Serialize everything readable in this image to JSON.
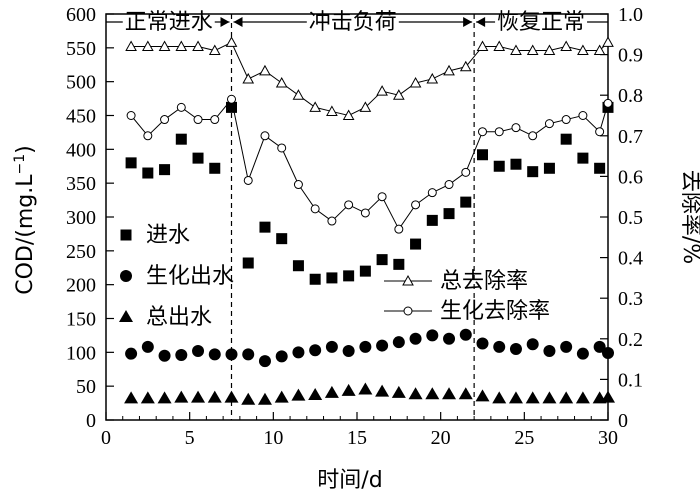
{
  "chart_data": {
    "type": "scatter",
    "xlabel": "时间/d",
    "ylabel_left": "COD/(mg.L",
    "ylabel_left_sup": "−1",
    "ylabel_left_close": ")",
    "ylabel_right": "去除率/%",
    "xlim": [
      0,
      30
    ],
    "ylim_left": [
      0,
      600
    ],
    "ylim_right": [
      0,
      1.0
    ],
    "x_ticks": [
      0,
      5,
      10,
      15,
      20,
      25,
      30
    ],
    "y_left_ticks": [
      0,
      50,
      100,
      150,
      200,
      250,
      300,
      350,
      400,
      450,
      500,
      550,
      600
    ],
    "y_right_ticks": [
      "0",
      "0.1",
      "0.2",
      "0.3",
      "0.4",
      "0.5",
      "0.6",
      "0.7",
      "0.8",
      "0.9",
      "1.0"
    ],
    "phases": [
      {
        "label": "正常进水",
        "from": 0,
        "to": 7.5
      },
      {
        "label": "冲击负荷",
        "from": 7.5,
        "to": 22
      },
      {
        "label": "恢复正常",
        "from": 22,
        "to": 30
      }
    ],
    "x": [
      1.5,
      2.5,
      3.5,
      4.5,
      5.5,
      6.5,
      7.5,
      8.5,
      9.5,
      10.5,
      11.5,
      12.5,
      13.5,
      14.5,
      15.5,
      16.5,
      17.5,
      18.5,
      19.5,
      20.5,
      21.5,
      22.5,
      23.5,
      24.5,
      25.5,
      26.5,
      27.5,
      28.5,
      29.5,
      30.5
    ],
    "series": [
      {
        "name": "进水",
        "axis": "left",
        "marker": "square",
        "values": [
          380,
          365,
          370,
          415,
          387,
          372,
          462,
          232,
          285,
          268,
          228,
          208,
          210,
          213,
          220,
          237,
          230,
          260,
          295,
          305,
          322,
          392,
          375,
          378,
          367,
          372,
          415,
          387,
          372,
          462
        ]
      },
      {
        "name": "生化出水",
        "axis": "left",
        "marker": "circle",
        "values": [
          98,
          108,
          95,
          96,
          102,
          97,
          97,
          97,
          87,
          94,
          100,
          103,
          108,
          102,
          108,
          110,
          115,
          120,
          125,
          120,
          126,
          113,
          108,
          105,
          112,
          102,
          108,
          98,
          108,
          99
        ]
      },
      {
        "name": "总出水",
        "axis": "left",
        "marker": "triangle",
        "values": [
          32,
          32,
          32,
          33,
          33,
          33,
          33,
          30,
          30,
          33,
          36,
          37,
          40,
          43,
          45,
          42,
          40,
          38,
          38,
          38,
          38,
          35,
          32,
          32,
          32,
          32,
          32,
          32,
          32,
          33
        ]
      },
      {
        "name": "总去除率",
        "axis": "right",
        "marker": "open-triangle-line",
        "values": [
          0.92,
          0.92,
          0.92,
          0.92,
          0.92,
          0.91,
          0.93,
          0.84,
          0.86,
          0.83,
          0.8,
          0.77,
          0.76,
          0.75,
          0.77,
          0.81,
          0.8,
          0.83,
          0.84,
          0.86,
          0.87,
          0.92,
          0.92,
          0.91,
          0.91,
          0.91,
          0.92,
          0.91,
          0.91,
          0.93
        ]
      },
      {
        "name": "生化去除率",
        "axis": "right",
        "marker": "open-circle-line",
        "values": [
          0.75,
          0.7,
          0.74,
          0.77,
          0.74,
          0.74,
          0.79,
          0.59,
          0.7,
          0.67,
          0.58,
          0.52,
          0.49,
          0.53,
          0.51,
          0.55,
          0.47,
          0.53,
          0.56,
          0.58,
          0.61,
          0.71,
          0.71,
          0.72,
          0.7,
          0.73,
          0.74,
          0.75,
          0.71,
          0.78
        ]
      }
    ],
    "legend_left": [
      "进水",
      "生化出水",
      "总出水"
    ],
    "legend_right": [
      "总去除率",
      "生化去除率"
    ]
  }
}
